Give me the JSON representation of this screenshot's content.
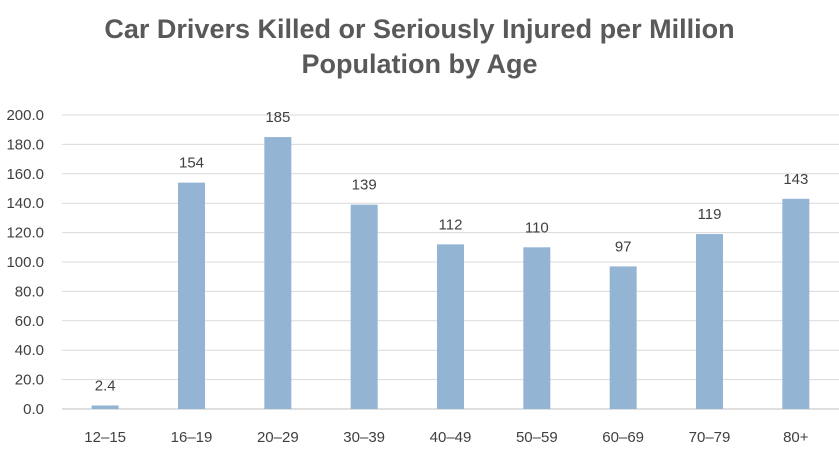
{
  "chart_data": {
    "type": "bar",
    "title_lines": [
      "Car Drivers Killed or Seriously Injured per Million",
      "Population by Age"
    ],
    "categories": [
      "12–15",
      "16–19",
      "20–29",
      "30–39",
      "40–49",
      "50–59",
      "60–69",
      "70–79",
      "80+"
    ],
    "values": [
      2.4,
      154,
      185,
      139,
      112,
      110,
      97,
      119,
      143
    ],
    "data_labels": [
      "2.4",
      "154",
      "185",
      "139",
      "112",
      "110",
      "97",
      "119",
      "143"
    ],
    "ylim": [
      0,
      200
    ],
    "y_ticks": [
      "0.0",
      "20.0",
      "40.0",
      "60.0",
      "80.0",
      "100.0",
      "120.0",
      "140.0",
      "160.0",
      "180.0",
      "200.0"
    ],
    "xlabel": "",
    "ylabel": "",
    "grid": true,
    "legend": "none",
    "bar_color": "#94b4d4",
    "grid_color": "#d9d9d9"
  }
}
